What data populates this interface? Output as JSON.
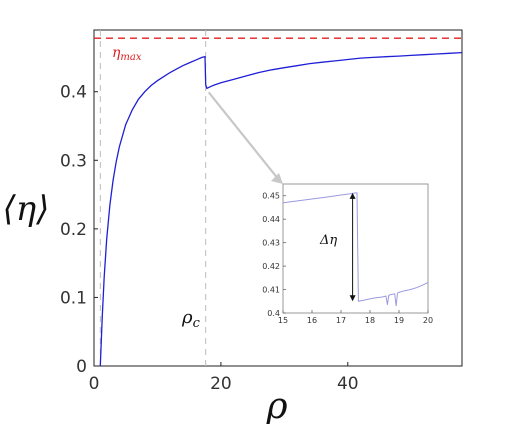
{
  "chart_data": [
    {
      "type": "line",
      "xlabel": "ρ",
      "ylabel": "⟨η⟩",
      "xlim": [
        0,
        58
      ],
      "ylim": [
        0,
        0.49
      ],
      "xticks": [
        0,
        20,
        40
      ],
      "yticks": [
        0,
        0.1,
        0.2,
        0.3,
        0.4
      ],
      "xtick_labels": [
        "0",
        "20",
        "40"
      ],
      "ytick_labels": [
        "0",
        "0.1",
        "0.2",
        "0.3",
        "0.4"
      ],
      "grid": false,
      "series": [
        {
          "color": "#1f1fd6",
          "x": [
            1,
            1.3,
            1.6,
            2,
            2.5,
            3,
            3.5,
            4,
            5,
            6,
            7,
            8,
            9,
            10,
            11,
            12,
            13,
            14,
            15,
            16,
            17,
            17.5,
            17.6,
            17.8,
            18.5,
            19,
            20,
            22,
            24,
            26,
            28,
            30,
            32,
            34,
            36,
            38,
            40,
            42,
            44,
            46,
            48,
            50,
            52,
            54,
            56,
            58
          ],
          "y": [
            0,
            0.07,
            0.13,
            0.185,
            0.235,
            0.27,
            0.298,
            0.32,
            0.352,
            0.373,
            0.389,
            0.4,
            0.409,
            0.416,
            0.422,
            0.428,
            0.433,
            0.438,
            0.442,
            0.446,
            0.45,
            0.451,
            0.41,
            0.405,
            0.408,
            0.41,
            0.413,
            0.418,
            0.423,
            0.428,
            0.432,
            0.435,
            0.438,
            0.441,
            0.443,
            0.445,
            0.447,
            0.449,
            0.45,
            0.451,
            0.452,
            0.453,
            0.454,
            0.455,
            0.456,
            0.457
          ]
        }
      ],
      "reference_lines": [
        {
          "orientation": "horizontal",
          "y": 0.478,
          "color": "#e02020",
          "label": "η",
          "label_sub": "max"
        },
        {
          "orientation": "vertical",
          "x": 1,
          "color": "#bbbbbb"
        },
        {
          "orientation": "vertical",
          "x": 17.6,
          "color": "#bbbbbb",
          "label": "ρ",
          "label_sub": "c"
        }
      ],
      "annotation_arrow": {
        "from": {
          "x": 17.6,
          "y": 0.405
        }
      }
    },
    {
      "type": "line",
      "role": "inset",
      "xlim": [
        15,
        20
      ],
      "ylim": [
        0.4,
        0.455
      ],
      "xticks": [
        15,
        16,
        17,
        18,
        19,
        20
      ],
      "yticks": [
        0.4,
        0.41,
        0.42,
        0.43,
        0.44,
        0.45
      ],
      "xtick_labels": [
        "15",
        "16",
        "17",
        "18",
        "19",
        "20"
      ],
      "ytick_labels": [
        "0.4",
        "0.41",
        "0.42",
        "0.43",
        "0.44",
        "0.45"
      ],
      "series": [
        {
          "color": "#9a9ae0",
          "x": [
            15,
            15.5,
            16,
            16.5,
            17,
            17.3,
            17.5,
            17.55,
            17.6,
            17.8,
            18.0,
            18.2,
            18.4,
            18.55,
            18.6,
            18.65,
            18.7,
            18.85,
            18.9,
            18.95,
            19.0,
            19.2,
            19.4,
            19.6,
            19.8,
            20
          ],
          "y": [
            0.447,
            0.4478,
            0.4486,
            0.4494,
            0.4503,
            0.4508,
            0.4512,
            0.4512,
            0.405,
            0.4055,
            0.406,
            0.4065,
            0.4068,
            0.4072,
            0.4035,
            0.4075,
            0.4078,
            0.4082,
            0.403,
            0.4085,
            0.4088,
            0.4095,
            0.41,
            0.4108,
            0.4118,
            0.413
          ]
        }
      ],
      "annotation": {
        "label": "Δη",
        "x": 17.4,
        "y_from": 0.405,
        "y_to": 0.4512
      }
    }
  ]
}
